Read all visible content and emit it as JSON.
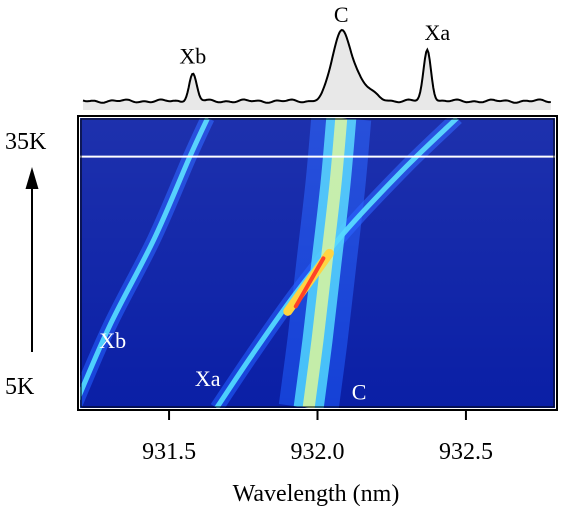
{
  "chart_data": {
    "type": "heatmap",
    "title": "",
    "xlabel": "Wavelength (nm)",
    "ylabel": "",
    "xlim": [
      931.2,
      932.8
    ],
    "x_ticks": [
      931.5,
      932.0,
      932.5
    ],
    "x_tick_labels": [
      "931.5",
      "932.0",
      "932.5"
    ],
    "y_range_labels": {
      "top": "35K",
      "bottom": "5K"
    },
    "y_temperature_K": [
      5,
      35
    ],
    "reference_line_temperature_K": 31,
    "spectrum": {
      "peaks": [
        {
          "label": "Xb",
          "wavelength_nm": 931.58,
          "relative_height": 0.42
        },
        {
          "label": "C",
          "wavelength_nm": 932.08,
          "relative_height": 1.0
        },
        {
          "label": "Xa",
          "wavelength_nm": 932.37,
          "relative_height": 0.8
        }
      ]
    },
    "lines": [
      {
        "label": "Xb",
        "points": [
          [
            931.18,
            5
          ],
          [
            931.3,
            13.5
          ],
          [
            931.45,
            22.5
          ],
          [
            931.57,
            31
          ],
          [
            931.63,
            35
          ]
        ]
      },
      {
        "label": "Xa",
        "points": [
          [
            931.66,
            5
          ],
          [
            931.78,
            10.5
          ],
          [
            931.93,
            17
          ],
          [
            932.1,
            23.5
          ],
          [
            932.3,
            30
          ],
          [
            932.47,
            35
          ]
        ]
      },
      {
        "label": "C",
        "points": [
          [
            931.97,
            5
          ],
          [
            932.0,
            12
          ],
          [
            932.03,
            20
          ],
          [
            932.06,
            28
          ],
          [
            932.08,
            35
          ]
        ]
      }
    ],
    "in_plot_labels": [
      {
        "text": "Xb",
        "wavelength_nm": 931.31,
        "temperature_K": 11.2
      },
      {
        "text": "Xa",
        "wavelength_nm": 931.63,
        "temperature_K": 7.3
      },
      {
        "text": "C",
        "wavelength_nm": 932.14,
        "temperature_K": 5.9
      }
    ],
    "colormap": [
      "#0a1fa6",
      "#1f5cff",
      "#4fd7ff",
      "#d9f59a",
      "#ffd23a",
      "#ff3b1f"
    ]
  }
}
